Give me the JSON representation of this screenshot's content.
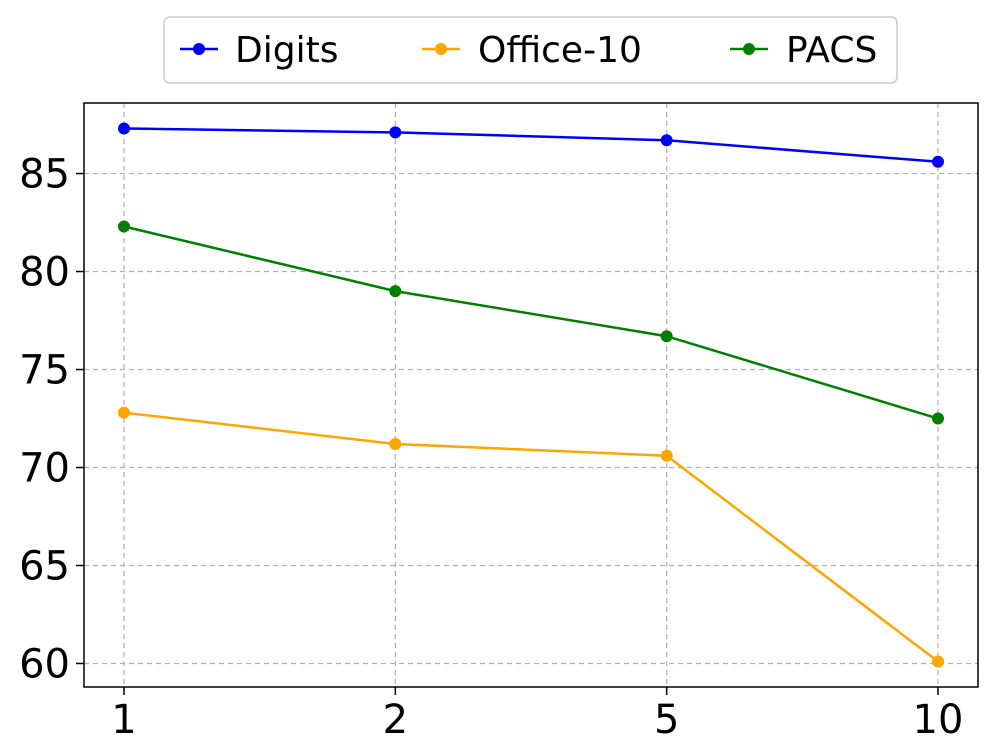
{
  "chart_data": {
    "type": "line",
    "title": "",
    "xlabel": "",
    "ylabel": "",
    "categories": [
      "1",
      "2",
      "5",
      "10"
    ],
    "ylim": [
      58.8,
      88.6
    ],
    "yticks": [
      60,
      65,
      70,
      75,
      80,
      85
    ],
    "grid": true,
    "legend_position": "top-center",
    "series": [
      {
        "name": "Digits",
        "color": "#0000ff",
        "values": [
          87.3,
          87.1,
          86.7,
          85.6
        ]
      },
      {
        "name": "Office-10",
        "color": "#ffa500",
        "values": [
          72.8,
          71.2,
          70.6,
          60.1
        ]
      },
      {
        "name": "PACS",
        "color": "#008000",
        "values": [
          82.3,
          79.0,
          76.7,
          72.5
        ]
      }
    ]
  }
}
